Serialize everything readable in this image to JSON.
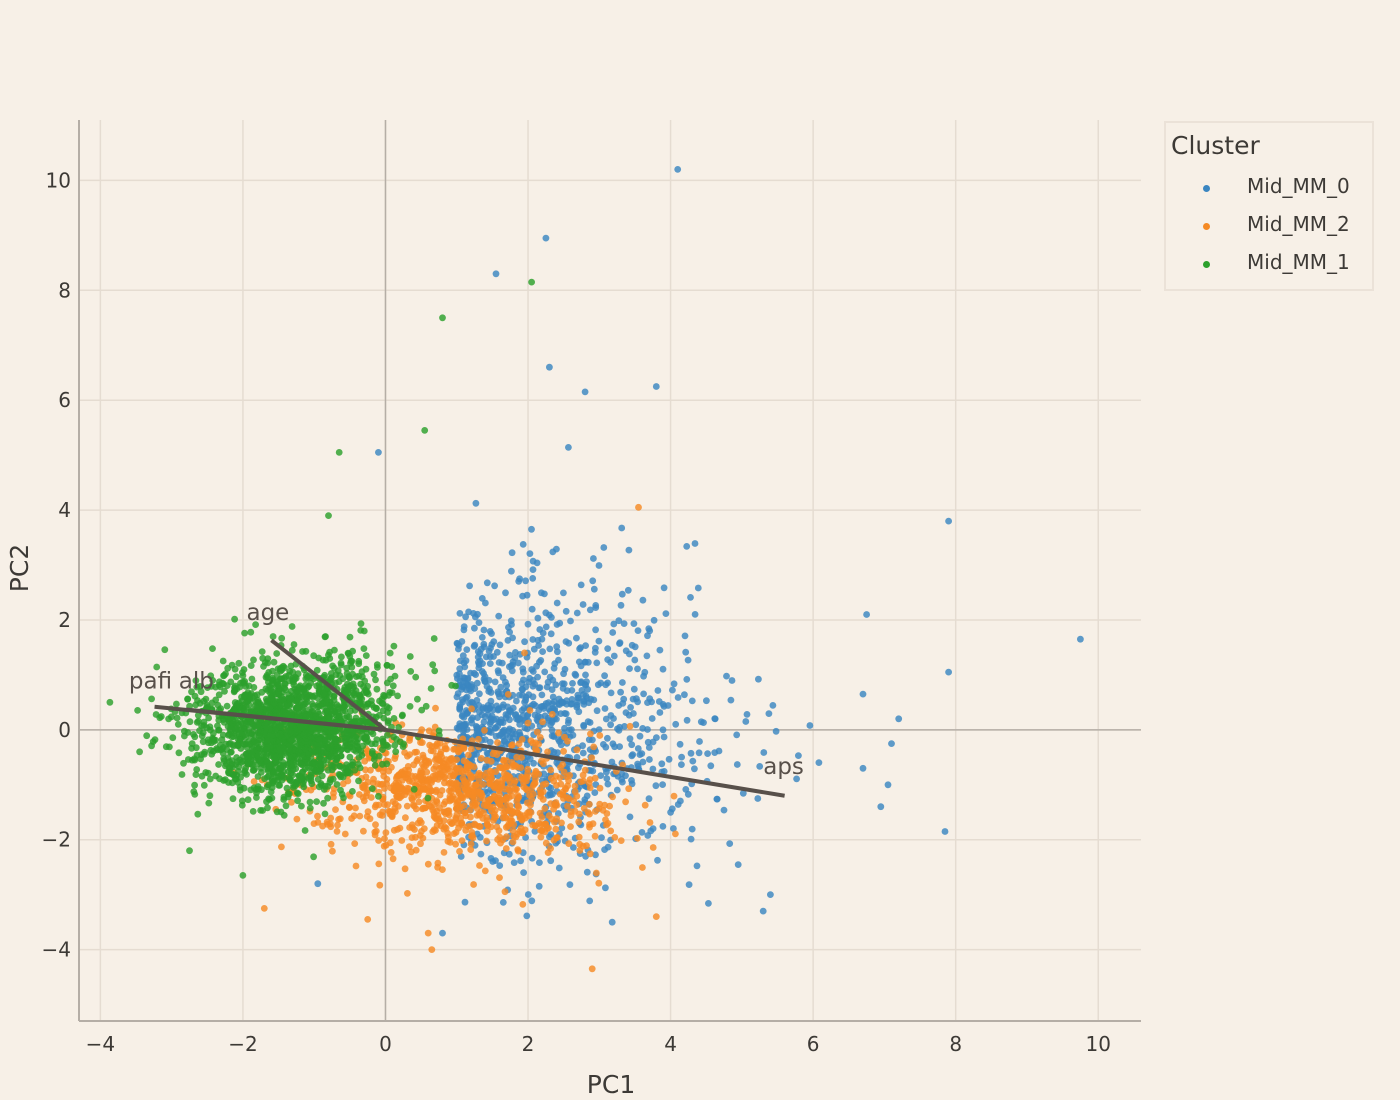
{
  "chart_data": {
    "type": "scatter",
    "subtype": "pca-biplot",
    "title": "",
    "xlabel": "PC1",
    "ylabel": "PC2",
    "xlim": [
      -4.3,
      10.6
    ],
    "ylim": [
      -5.3,
      11.1
    ],
    "xticks": [
      -4,
      -2,
      0,
      2,
      4,
      6,
      8,
      10
    ],
    "yticks": [
      -4,
      -2,
      0,
      2,
      4,
      6,
      8,
      10
    ],
    "xtick_labels": [
      "−4",
      "−2",
      "0",
      "2",
      "4",
      "6",
      "8",
      "10"
    ],
    "ytick_labels": [
      "−4",
      "−2",
      "0",
      "2",
      "4",
      "6",
      "8",
      "10"
    ],
    "grid": true,
    "zero_lines": true,
    "legend": {
      "title": "Cluster",
      "position": "right-top"
    },
    "series": [
      {
        "name": "Mid_MM_0",
        "color": "#3b86c1",
        "center": [
          2.2,
          -0.2
        ],
        "spread": [
          1.5,
          1.5
        ],
        "approx_count": 1100,
        "outliers": [
          [
            4.1,
            10.2
          ],
          [
            2.25,
            8.95
          ],
          [
            1.55,
            8.3
          ],
          [
            2.3,
            6.6
          ],
          [
            2.8,
            6.15
          ],
          [
            3.8,
            6.25
          ],
          [
            9.75,
            1.65
          ],
          [
            7.9,
            3.8
          ],
          [
            7.9,
            1.05
          ],
          [
            7.85,
            -1.85
          ],
          [
            6.75,
            2.1
          ],
          [
            6.7,
            0.65
          ],
          [
            7.2,
            0.2
          ],
          [
            7.1,
            -0.25
          ],
          [
            7.05,
            -1.0
          ],
          [
            6.95,
            -1.4
          ],
          [
            6.7,
            -0.7
          ],
          [
            5.3,
            -3.3
          ],
          [
            5.4,
            -3.0
          ],
          [
            0.8,
            -3.7
          ],
          [
            -0.95,
            -2.8
          ],
          [
            -0.1,
            5.05
          ]
        ]
      },
      {
        "name": "Mid_MM_2",
        "color": "#f58a24",
        "center": [
          1.0,
          -1.1
        ],
        "spread": [
          1.1,
          0.8
        ],
        "approx_count": 1000,
        "outliers": [
          [
            2.9,
            -4.35
          ],
          [
            0.65,
            -4.0
          ],
          [
            0.6,
            -3.7
          ],
          [
            -1.7,
            -3.25
          ],
          [
            -0.25,
            -3.45
          ],
          [
            3.55,
            4.05
          ],
          [
            1.95,
            1.4
          ],
          [
            3.8,
            -3.4
          ]
        ]
      },
      {
        "name": "Mid_MM_1",
        "color": "#2ca02c",
        "center": [
          -1.3,
          0.0
        ],
        "spread": [
          0.75,
          0.75
        ],
        "approx_count": 1800,
        "outliers": [
          [
            2.05,
            8.15
          ],
          [
            0.8,
            7.5
          ],
          [
            -0.65,
            5.05
          ],
          [
            0.55,
            5.45
          ],
          [
            -3.45,
            -0.4
          ],
          [
            -2.75,
            -2.2
          ],
          [
            -2.0,
            -2.65
          ],
          [
            -0.8,
            3.9
          ]
        ]
      }
    ],
    "loadings": [
      {
        "name": "pafi",
        "end": [
          -3.24,
          0.42
        ],
        "label_pos": [
          -3.6,
          0.75
        ]
      },
      {
        "name": "alb",
        "end": [
          -2.8,
          0.37
        ],
        "label_pos": [
          -2.9,
          0.75
        ]
      },
      {
        "name": "age",
        "end": [
          -1.6,
          1.63
        ],
        "label_pos": [
          -1.95,
          2.0
        ]
      },
      {
        "name": "aps",
        "end": [
          5.6,
          -1.2
        ],
        "label_pos": [
          5.3,
          -0.8
        ]
      }
    ],
    "loading_color": "#58504a"
  }
}
